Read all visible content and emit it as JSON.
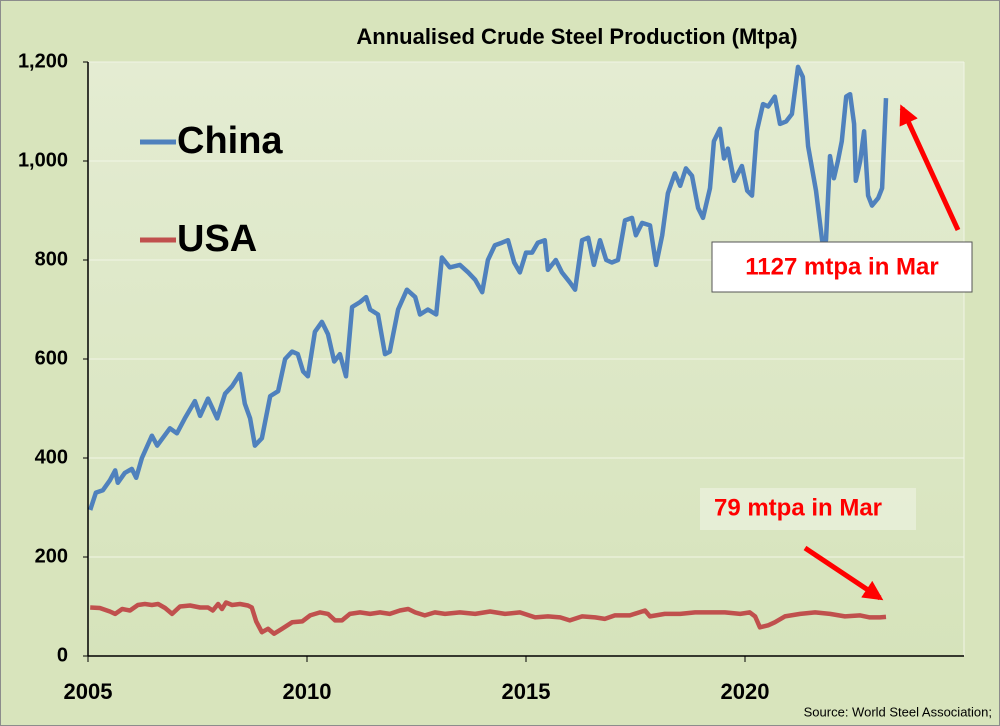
{
  "chart_data": {
    "type": "line",
    "title": "Annualised Crude Steel Production (Mtpa)",
    "xlim": [
      2005,
      2025
    ],
    "xticks": [
      2005,
      2010,
      2015,
      2020
    ],
    "ylim": [
      0,
      1200
    ],
    "yticks": [
      0,
      200,
      400,
      600,
      800,
      {
        "value": 1000,
        "label": "1,000"
      },
      {
        "value": 1200,
        "label": "1,200"
      }
    ],
    "grid": true,
    "legend": "upper left",
    "annotations": [
      "1127 mtpa in Mar",
      "79 mtpa in Mar"
    ],
    "source": "Source: World Steel Association;",
    "series": [
      {
        "name": "China",
        "color": "#4f81bd",
        "x": [
          2005.05,
          2005.18,
          2005.34,
          2005.5,
          2005.62,
          2005.68,
          2005.84,
          2006.0,
          2006.1,
          2006.23,
          2006.46,
          2006.58,
          2006.87,
          2007.03,
          2007.21,
          2007.44,
          2007.56,
          2007.74,
          2007.95,
          2008.13,
          2008.29,
          2008.47,
          2008.58,
          2008.7,
          2008.81,
          2008.97,
          2009.16,
          2009.34,
          2009.5,
          2009.66,
          2009.79,
          2009.91,
          2010.02,
          2010.18,
          2010.34,
          2010.48,
          2010.62,
          2010.75,
          2010.89,
          2011.03,
          2011.21,
          2011.35,
          2011.44,
          2011.62,
          2011.78,
          2011.89,
          2012.08,
          2012.28,
          2012.47,
          2012.58,
          2012.76,
          2012.95,
          2013.08,
          2013.26,
          2013.49,
          2013.68,
          2013.84,
          2014.0,
          2014.13,
          2014.29,
          2014.45,
          2014.59,
          2014.73,
          2014.86,
          2015.0,
          2015.14,
          2015.27,
          2015.43,
          2015.5,
          2015.68,
          2015.82,
          2016.0,
          2016.12,
          2016.28,
          2016.42,
          2016.55,
          2016.69,
          2016.83,
          2016.96,
          2017.1,
          2017.26,
          2017.42,
          2017.51,
          2017.65,
          2017.83,
          2017.97,
          2018.11,
          2018.24,
          2018.4,
          2018.52,
          2018.65,
          2018.79,
          2018.93,
          2019.04,
          2019.2,
          2019.29,
          2019.43,
          2019.52,
          2019.61,
          2019.75,
          2019.93,
          2020.05,
          2020.16,
          2020.27,
          2020.41,
          2020.53,
          2020.68,
          2020.8,
          2020.94,
          2021.07,
          2021.21,
          2021.32,
          2021.44,
          2021.62,
          2021.76,
          2021.85,
          2021.94,
          2022.03,
          2022.12,
          2022.21,
          2022.31,
          2022.4,
          2022.49,
          2022.53,
          2022.63,
          2022.72,
          2022.81,
          2022.9,
          2023.04,
          2023.13,
          2023.22
        ],
        "values": [
          295,
          330,
          335,
          355,
          375,
          350,
          370,
          378,
          360,
          400,
          445,
          425,
          460,
          450,
          480,
          515,
          485,
          520,
          480,
          530,
          545,
          570,
          510,
          480,
          425,
          440,
          525,
          535,
          600,
          615,
          610,
          575,
          565,
          655,
          675,
          650,
          595,
          610,
          565,
          705,
          715,
          725,
          700,
          690,
          610,
          615,
          700,
          740,
          725,
          690,
          700,
          690,
          805,
          785,
          790,
          775,
          760,
          735,
          800,
          830,
          835,
          840,
          795,
          775,
          815,
          815,
          835,
          840,
          780,
          800,
          775,
          755,
          740,
          840,
          845,
          790,
          840,
          800,
          795,
          800,
          880,
          885,
          850,
          875,
          870,
          790,
          850,
          935,
          975,
          950,
          985,
          970,
          905,
          885,
          945,
          1040,
          1065,
          1005,
          1025,
          960,
          990,
          940,
          930,
          1060,
          1115,
          1110,
          1130,
          1075,
          1080,
          1095,
          1190,
          1170,
          1030,
          940,
          840,
          840,
          1010,
          965,
          1000,
          1040,
          1130,
          1135,
          1075,
          960,
          1000,
          1060,
          930,
          910,
          925,
          945,
          1127
        ]
      },
      {
        "name": "USA",
        "color": "#c0504d",
        "x": [
          2005.05,
          2005.27,
          2005.5,
          2005.62,
          2005.78,
          2005.96,
          2006.14,
          2006.3,
          2006.46,
          2006.6,
          2006.76,
          2006.92,
          2007.1,
          2007.33,
          2007.56,
          2007.74,
          2007.85,
          2007.97,
          2008.06,
          2008.15,
          2008.29,
          2008.47,
          2008.65,
          2008.74,
          2008.84,
          2008.97,
          2009.11,
          2009.25,
          2009.43,
          2009.66,
          2009.89,
          2010.07,
          2010.3,
          2010.48,
          2010.64,
          2010.8,
          2010.98,
          2011.21,
          2011.44,
          2011.67,
          2011.89,
          2012.12,
          2012.31,
          2012.47,
          2012.69,
          2012.92,
          2013.15,
          2013.49,
          2013.84,
          2014.18,
          2014.52,
          2014.86,
          2015.21,
          2015.5,
          2015.78,
          2016.0,
          2016.28,
          2016.58,
          2016.8,
          2017.03,
          2017.37,
          2017.72,
          2017.83,
          2018.17,
          2018.52,
          2018.86,
          2019.2,
          2019.54,
          2019.89,
          2020.11,
          2020.23,
          2020.34,
          2020.53,
          2020.68,
          2020.91,
          2021.26,
          2021.6,
          2021.94,
          2022.28,
          2022.63,
          2022.85,
          2023.08,
          2023.22
        ],
        "values": [
          98,
          97,
          90,
          85,
          95,
          92,
          103,
          105,
          103,
          105,
          97,
          85,
          100,
          102,
          98,
          98,
          92,
          105,
          95,
          108,
          103,
          105,
          102,
          98,
          70,
          48,
          55,
          45,
          55,
          68,
          70,
          82,
          88,
          85,
          72,
          72,
          85,
          88,
          85,
          88,
          85,
          92,
          95,
          88,
          82,
          88,
          85,
          88,
          85,
          90,
          85,
          88,
          78,
          80,
          78,
          72,
          80,
          78,
          75,
          82,
          82,
          92,
          80,
          85,
          85,
          88,
          88,
          88,
          85,
          88,
          80,
          58,
          62,
          68,
          80,
          85,
          88,
          85,
          80,
          82,
          78,
          78,
          79
        ]
      }
    ]
  }
}
